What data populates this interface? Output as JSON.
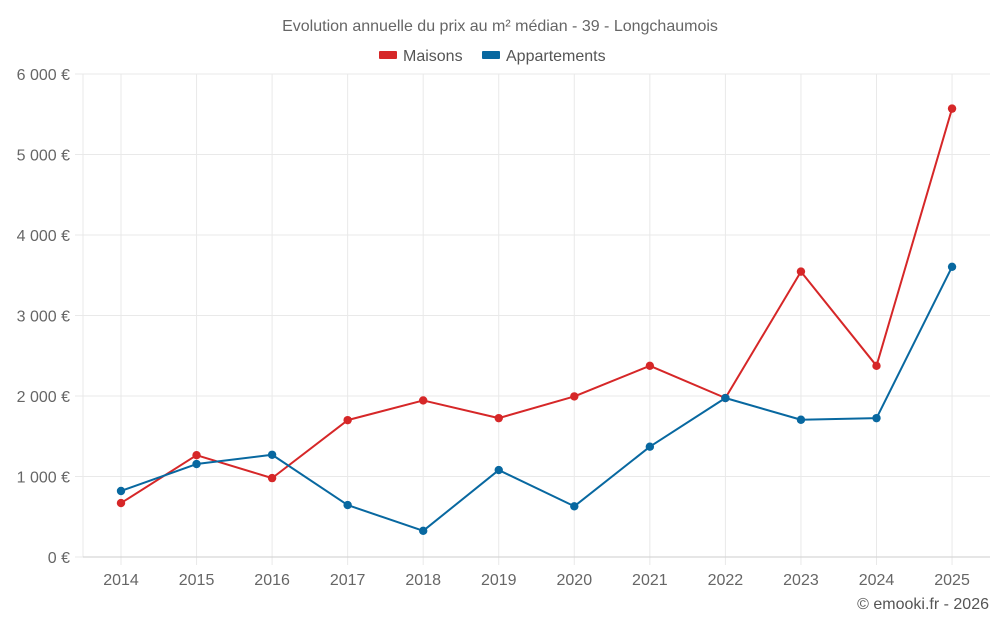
{
  "chart_data": {
    "type": "line",
    "title": "Evolution annuelle du prix au m² médian - 39 - Longchaumois",
    "xlabel": "",
    "ylabel": "",
    "x": [
      "2014",
      "2015",
      "2016",
      "2017",
      "2018",
      "2019",
      "2020",
      "2021",
      "2022",
      "2023",
      "2024",
      "2025"
    ],
    "ylim": [
      0,
      6000
    ],
    "yticks": [
      0,
      1000,
      2000,
      3000,
      4000,
      5000,
      6000
    ],
    "ytick_labels": [
      "0 €",
      "1 000 €",
      "2 000 €",
      "3 000 €",
      "4 000 €",
      "5 000 €",
      "6 000 €"
    ],
    "grid": true,
    "legend_position": "top-center",
    "series": [
      {
        "name": "Maisons",
        "color": "#d62728",
        "values": [
          670,
          1265,
          980,
          1700,
          1945,
          1725,
          1995,
          2375,
          1975,
          3545,
          2375,
          5570
        ]
      },
      {
        "name": "Appartements",
        "color": "#0868a0",
        "values": [
          820,
          1155,
          1270,
          645,
          325,
          1080,
          630,
          1370,
          1975,
          1705,
          1725,
          3605
        ]
      }
    ],
    "credit": "© emooki.fr - 2026"
  }
}
